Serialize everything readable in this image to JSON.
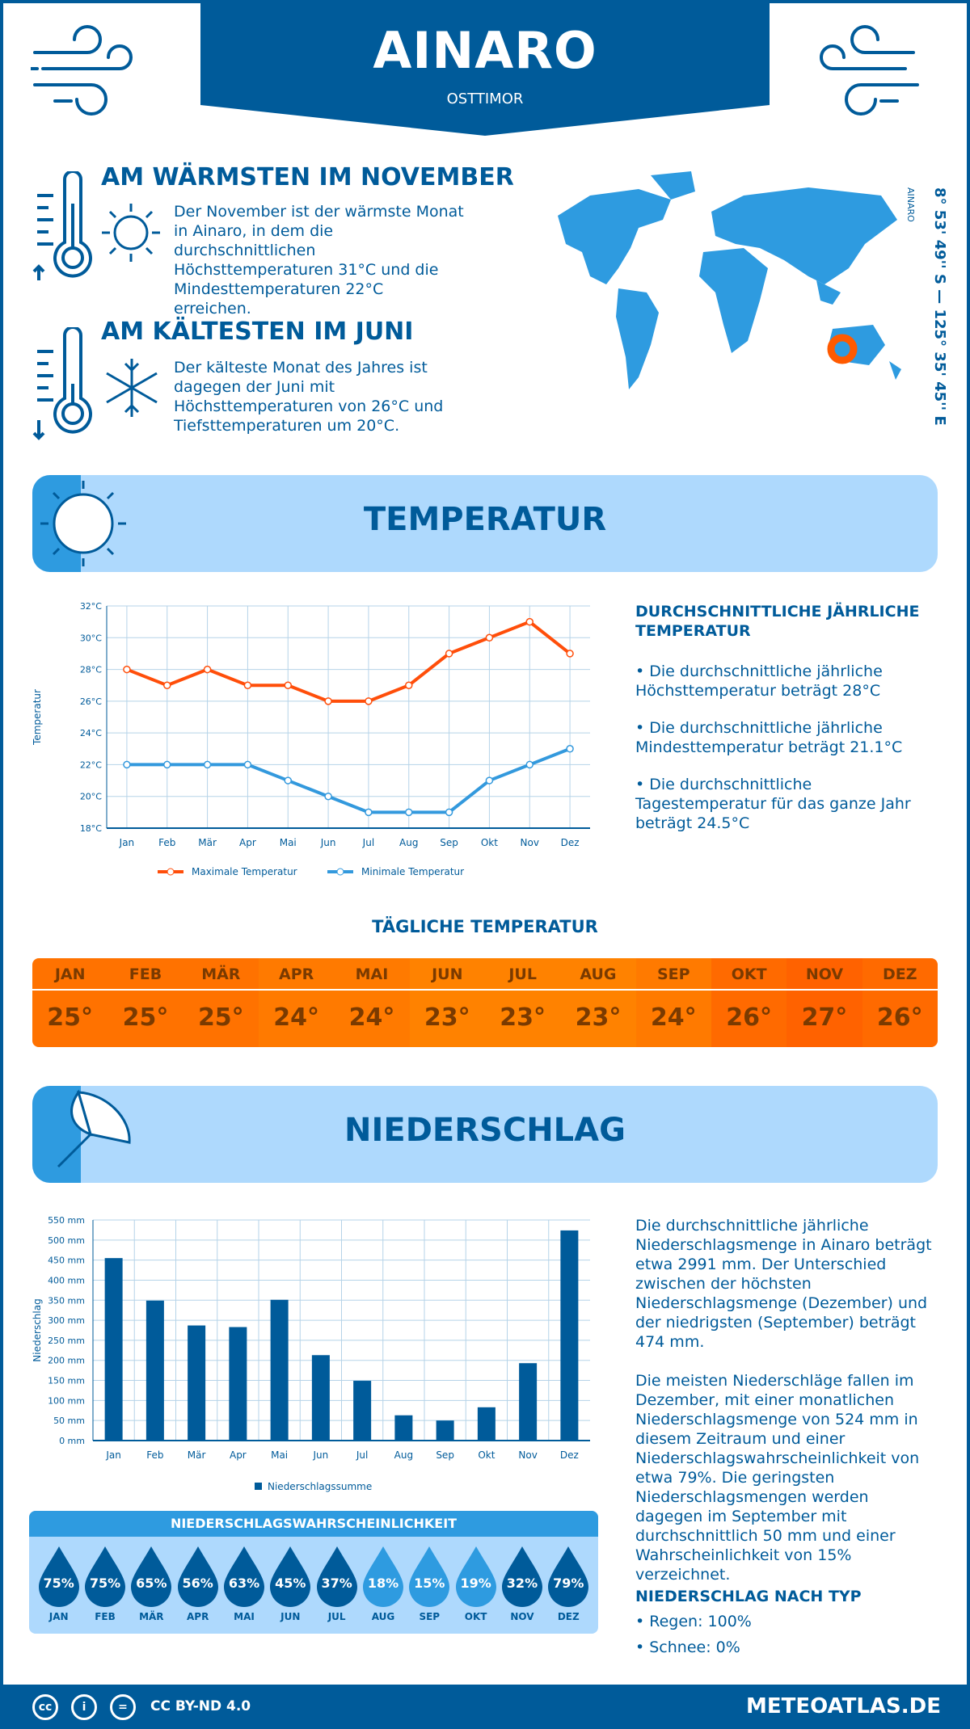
{
  "header": {
    "title": "AINARO",
    "subtitle": "OSTTIMOR"
  },
  "warmest": {
    "heading": "AM WÄRMSTEN IM NOVEMBER",
    "text": "Der November ist der wärmste Monat in Ainaro, in dem die durchschnittlichen Höchsttemperaturen 31°C und die Mindesttemperaturen 22°C erreichen."
  },
  "coldest": {
    "heading": "AM KÄLTESTEN IM JUNI",
    "text": "Der kälteste Monat des Jahres ist dagegen der Juni mit Höchsttemperaturen von 26°C und Tiefsttemperaturen um 20°C."
  },
  "map": {
    "place_label": "AINARO",
    "coordinates": "8° 53' 49'' S — 125° 35' 45'' E"
  },
  "temperature": {
    "banner": "TEMPERATUR",
    "annual_heading": "DURCHSCHNITTLICHE JÄHRLICHE TEMPERATUR",
    "bullets": [
      "• Die durchschnittliche jährliche Höchsttemperatur beträgt 28°C",
      "• Die durchschnittliche jährliche Mindesttemperatur beträgt 21.1°C",
      "• Die durchschnittliche Tagestemperatur für das ganze Jahr beträgt 24.5°C"
    ],
    "daily_heading": "TÄGLICHE TEMPERATUR",
    "daily": [
      {
        "m": "JAN",
        "v": "25°",
        "c": "#ff7200"
      },
      {
        "m": "FEB",
        "v": "25°",
        "c": "#ff7200"
      },
      {
        "m": "MÄR",
        "v": "25°",
        "c": "#ff7200"
      },
      {
        "m": "APR",
        "v": "24°",
        "c": "#ff7a00"
      },
      {
        "m": "MAI",
        "v": "24°",
        "c": "#ff7a00"
      },
      {
        "m": "JUN",
        "v": "23°",
        "c": "#ff8200"
      },
      {
        "m": "JUL",
        "v": "23°",
        "c": "#ff8200"
      },
      {
        "m": "AUG",
        "v": "23°",
        "c": "#ff8200"
      },
      {
        "m": "SEP",
        "v": "24°",
        "c": "#ff7a00"
      },
      {
        "m": "OKT",
        "v": "26°",
        "c": "#ff6a00"
      },
      {
        "m": "NOV",
        "v": "27°",
        "c": "#ff6200"
      },
      {
        "m": "DEZ",
        "v": "26°",
        "c": "#ff6a00"
      }
    ]
  },
  "precipitation": {
    "banner": "NIEDERSCHLAG",
    "text1": "Die durchschnittliche jährliche Niederschlagsmenge in Ainaro beträgt etwa 2991 mm. Der Unterschied zwischen der höchsten Niederschlagsmenge (Dezember) und der niedrigsten (September) beträgt 474 mm.",
    "text2": "Die meisten Niederschläge fallen im Dezember, mit einer monatlichen Niederschlagsmenge von 524 mm in diesem Zeitraum und einer Niederschlagswahrscheinlichkeit von etwa 79%. Die geringsten Niederschlagsmengen werden dagegen im September mit durchschnittlich 50 mm und einer Wahrscheinlichkeit von 15% verzeichnet.",
    "probability_heading": "NIEDERSCHLAGSWAHRSCHEINLICHKEIT",
    "probability": [
      {
        "m": "JAN",
        "v": "75%"
      },
      {
        "m": "FEB",
        "v": "75%"
      },
      {
        "m": "MÄR",
        "v": "65%"
      },
      {
        "m": "APR",
        "v": "56%"
      },
      {
        "m": "MAI",
        "v": "63%"
      },
      {
        "m": "JUN",
        "v": "45%"
      },
      {
        "m": "JUL",
        "v": "37%"
      },
      {
        "m": "AUG",
        "v": "18%"
      },
      {
        "m": "SEP",
        "v": "15%"
      },
      {
        "m": "OKT",
        "v": "19%"
      },
      {
        "m": "NOV",
        "v": "32%"
      },
      {
        "m": "DEZ",
        "v": "79%"
      }
    ],
    "type_heading": "NIEDERSCHLAG NACH TYP",
    "types": [
      "• Regen: 100%",
      "• Schnee: 0%"
    ]
  },
  "colors": {
    "primary": "#005b9a",
    "light": "#aed9fd",
    "mid": "#2e9be0",
    "max": "#ff4e0a",
    "min": "#3399dd",
    "marker": "#ff5a00"
  },
  "footer": {
    "license": "CC BY-ND 4.0",
    "site": "METEOATLAS.DE"
  },
  "chart_data": [
    {
      "type": "line",
      "ylabel": "Temperatur",
      "ylim": [
        18,
        32
      ],
      "yticks": [
        "18°C",
        "20°C",
        "22°C",
        "24°C",
        "26°C",
        "28°C",
        "30°C",
        "32°C"
      ],
      "grid": true,
      "legend": "bottom",
      "categories": [
        "Jan",
        "Feb",
        "Mär",
        "Apr",
        "Mai",
        "Jun",
        "Jul",
        "Aug",
        "Sep",
        "Okt",
        "Nov",
        "Dez"
      ],
      "series": [
        {
          "name": "Maximale Temperatur",
          "values": [
            28,
            27,
            28,
            27,
            27,
            26,
            26,
            27,
            29,
            30,
            31,
            29
          ]
        },
        {
          "name": "Minimale Temperatur",
          "values": [
            22,
            22,
            22,
            22,
            21,
            20,
            19,
            19,
            19,
            21,
            22,
            23
          ]
        }
      ]
    },
    {
      "type": "bar",
      "ylabel": "Niederschlag",
      "ylim": [
        0,
        550
      ],
      "yticks": [
        "0 mm",
        "50 mm",
        "100 mm",
        "150 mm",
        "200 mm",
        "250 mm",
        "300 mm",
        "350 mm",
        "400 mm",
        "450 mm",
        "500 mm",
        "550 mm"
      ],
      "grid": true,
      "legend": "bottom",
      "categories": [
        "Jan",
        "Feb",
        "Mär",
        "Apr",
        "Mai",
        "Jun",
        "Jul",
        "Aug",
        "Sep",
        "Okt",
        "Nov",
        "Dez"
      ],
      "series": [
        {
          "name": "Niederschlagssumme",
          "values": [
            455,
            349,
            287,
            283,
            351,
            213,
            149,
            63,
            50,
            83,
            193,
            524
          ]
        }
      ]
    }
  ]
}
